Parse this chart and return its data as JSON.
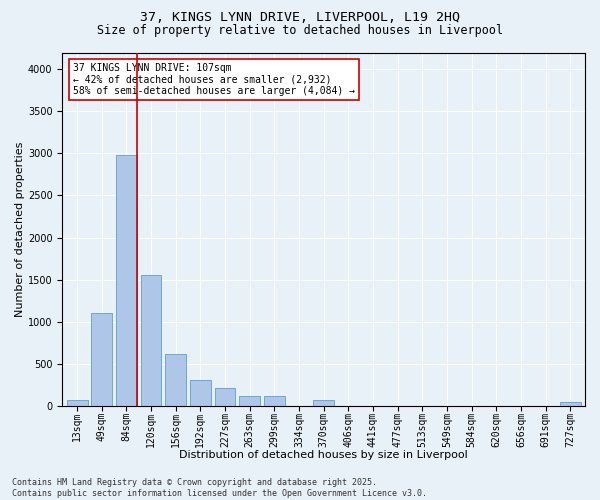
{
  "title_line1": "37, KINGS LYNN DRIVE, LIVERPOOL, L19 2HQ",
  "title_line2": "Size of property relative to detached houses in Liverpool",
  "xlabel": "Distribution of detached houses by size in Liverpool",
  "ylabel": "Number of detached properties",
  "bar_labels": [
    "13sqm",
    "49sqm",
    "84sqm",
    "120sqm",
    "156sqm",
    "192sqm",
    "227sqm",
    "263sqm",
    "299sqm",
    "334sqm",
    "370sqm",
    "406sqm",
    "441sqm",
    "477sqm",
    "513sqm",
    "549sqm",
    "584sqm",
    "620sqm",
    "656sqm",
    "691sqm",
    "727sqm"
  ],
  "bar_values": [
    70,
    1100,
    2980,
    1550,
    620,
    310,
    210,
    110,
    120,
    0,
    70,
    0,
    0,
    0,
    0,
    0,
    0,
    0,
    0,
    0,
    50
  ],
  "bar_color": "#aec6e8",
  "bar_edge_color": "#5a9fd4",
  "vline_color": "#cc0000",
  "annotation_text": "37 KINGS LYNN DRIVE: 107sqm\n← 42% of detached houses are smaller (2,932)\n58% of semi-detached houses are larger (4,084) →",
  "annotation_box_color": "#ffffff",
  "annotation_box_edge": "#cc0000",
  "ylim": [
    0,
    4200
  ],
  "yticks": [
    0,
    500,
    1000,
    1500,
    2000,
    2500,
    3000,
    3500,
    4000
  ],
  "footnote": "Contains HM Land Registry data © Crown copyright and database right 2025.\nContains public sector information licensed under the Open Government Licence v3.0.",
  "bg_color": "#e8f0f8",
  "plot_bg_color": "#e8f0f8",
  "title_fontsize": 9.5,
  "subtitle_fontsize": 8.5,
  "axis_label_fontsize": 8,
  "tick_fontsize": 7,
  "annotation_fontsize": 7,
  "footnote_fontsize": 6
}
